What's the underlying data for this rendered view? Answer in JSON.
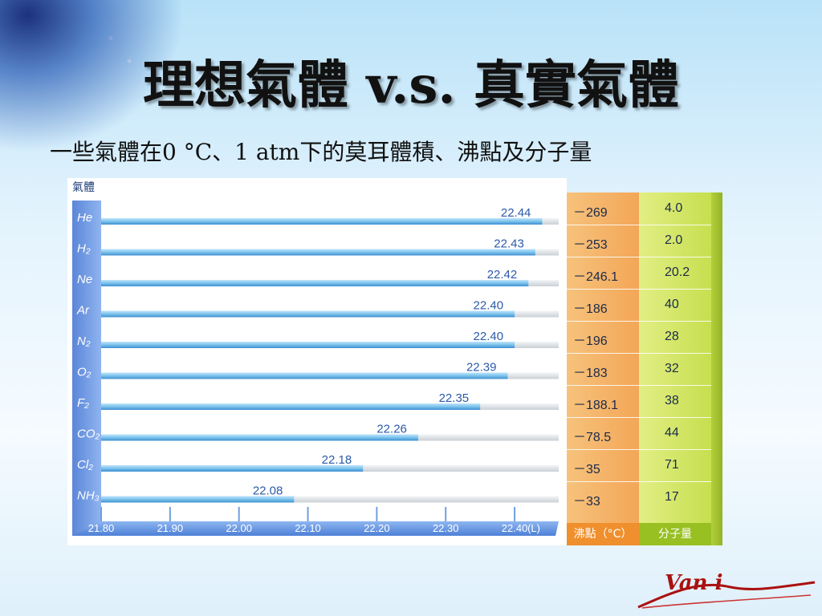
{
  "title": "理想氣體 v.s. 真實氣體",
  "subtitle": "一些氣體在0 °C、1 atm下的莫耳體積、沸點及分子量",
  "chart_data": {
    "type": "bar",
    "ylabel": "氣體",
    "categories": [
      "He",
      "H2",
      "Ne",
      "Ar",
      "N2",
      "O2",
      "F2",
      "CO2",
      "Cl2",
      "NH3"
    ],
    "category_labels": [
      "He",
      "H₂",
      "Ne",
      "Ar",
      "N₂",
      "O₂",
      "F₂",
      "CO₂",
      "Cl₂",
      "NH₃"
    ],
    "values": [
      22.44,
      22.43,
      22.42,
      22.4,
      22.4,
      22.39,
      22.35,
      22.26,
      22.18,
      22.08
    ],
    "value_labels": [
      "22.44",
      "22.43",
      "22.42",
      "22.40",
      "22.40",
      "22.39",
      "22.35",
      "22.26",
      "22.18",
      "22.08"
    ],
    "xticks": [
      "21.80",
      "21.90",
      "22.00",
      "22.10",
      "22.20",
      "22.30",
      "22.40"
    ],
    "xunit": "(L)",
    "xlim": [
      21.8,
      22.45
    ],
    "orientation": "horizontal"
  },
  "table": {
    "boiling_point_header": "沸點（°C）",
    "molar_mass_header": "分子量",
    "boiling_points": [
      "－269",
      "－253",
      "－246.1",
      "－186",
      "－196",
      "－183",
      "－188.1",
      "－78.5",
      "－35",
      "－33"
    ],
    "molar_masses": [
      "4.0",
      "2.0",
      "20.2",
      "40",
      "28",
      "32",
      "38",
      "44",
      "71",
      "17"
    ]
  },
  "logo": {
    "text": "Van i"
  },
  "colors": {
    "bar_blue": "#7cc3ec",
    "bar_dark": "#3d8fd0",
    "bar_ghost": "#dde3e8",
    "axis_blue": "#6f9fe0",
    "boiling_col": "#f3a657",
    "mass_col": "#c6df4f"
  }
}
